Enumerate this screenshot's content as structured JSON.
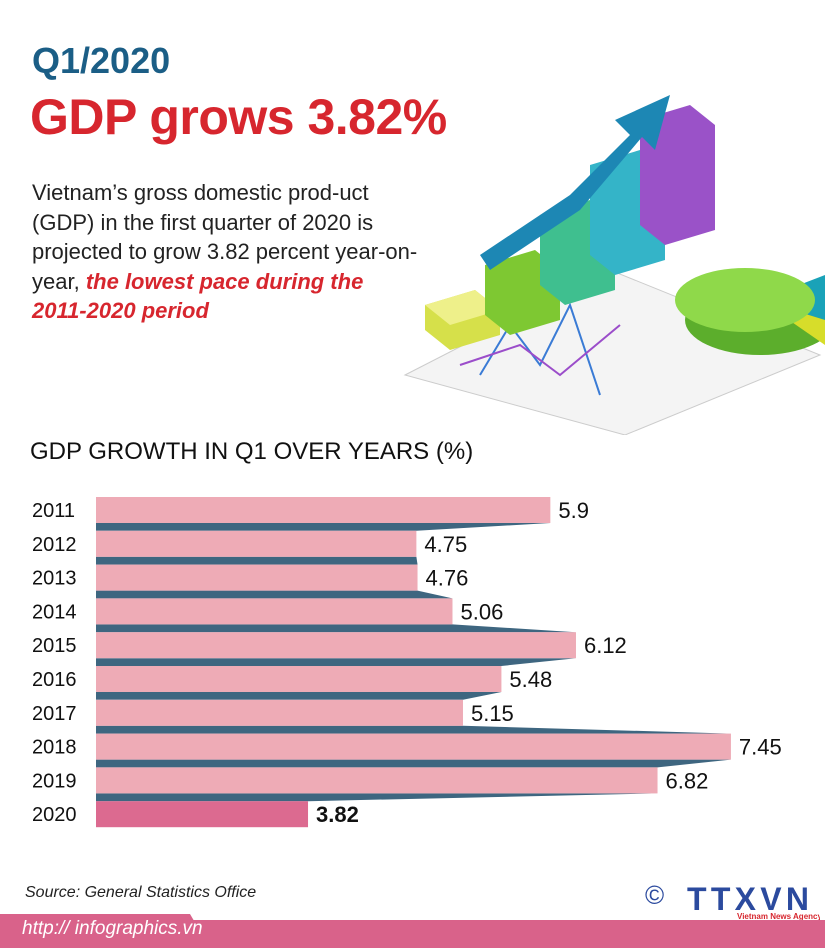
{
  "header": {
    "kicker": "Q1/2020",
    "headline": "GDP grows 3.82%"
  },
  "description": {
    "text": "Vietnam’s gross domestic prod-uct (GDP) in the first quarter of 2020 is projected to grow 3.82 percent year-on-year,",
    "highlight": "the lowest pace during the 2011-2020 period"
  },
  "chart_data": {
    "type": "bar",
    "orientation": "horizontal",
    "title": "GDP GROWTH IN Q1 OVER YEARS (%)",
    "categories": [
      "2011",
      "2012",
      "2013",
      "2014",
      "2015",
      "2016",
      "2017",
      "2018",
      "2019",
      "2020"
    ],
    "values": [
      5.9,
      4.75,
      4.76,
      5.06,
      6.12,
      5.48,
      5.15,
      7.45,
      6.82,
      3.82
    ],
    "value_labels": [
      "5.9",
      "4.75",
      "4.76",
      "5.06",
      "6.12",
      "5.48",
      "5.15",
      "7.45",
      "6.82",
      "3.82"
    ],
    "xlim": [
      2,
      8
    ],
    "grid": false,
    "colors": {
      "bar": "#eeabb6",
      "highlight_bar": "#dc6a90",
      "connector": "#3e6680"
    }
  },
  "footer": {
    "source": "Source: General Statistics Office",
    "url": "http:// infographics.vn",
    "logo_text": "TTXVN",
    "logo_sub": "Vietnam News Agency",
    "copyright": "©"
  }
}
